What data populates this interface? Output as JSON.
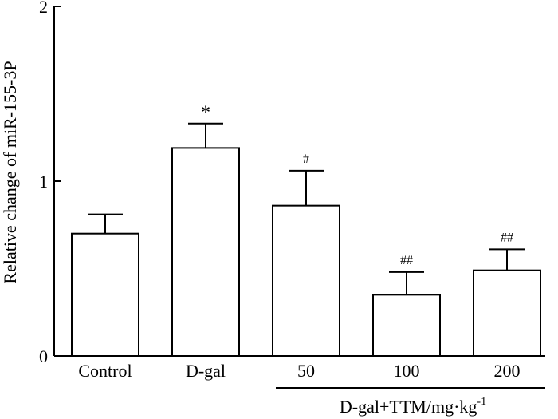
{
  "chart_data": {
    "type": "bar",
    "categories": [
      "Control",
      "D-gal",
      "50",
      "100",
      "200"
    ],
    "values": [
      0.7,
      1.19,
      0.86,
      0.35,
      0.49
    ],
    "errors": [
      0.11,
      0.14,
      0.2,
      0.13,
      0.12
    ],
    "significance": [
      "",
      "*",
      "#",
      "##",
      "##"
    ],
    "ylabel": "Relative change of miR-155-3P",
    "ylim": [
      0,
      2
    ],
    "yticks": [
      "0",
      "1",
      "2"
    ],
    "group_label": {
      "text": "D-gal+TTM/mg·kg",
      "superscript": "-1",
      "spans_categories": [
        "50",
        "100",
        "200"
      ]
    },
    "grid": false,
    "legend": "none"
  }
}
